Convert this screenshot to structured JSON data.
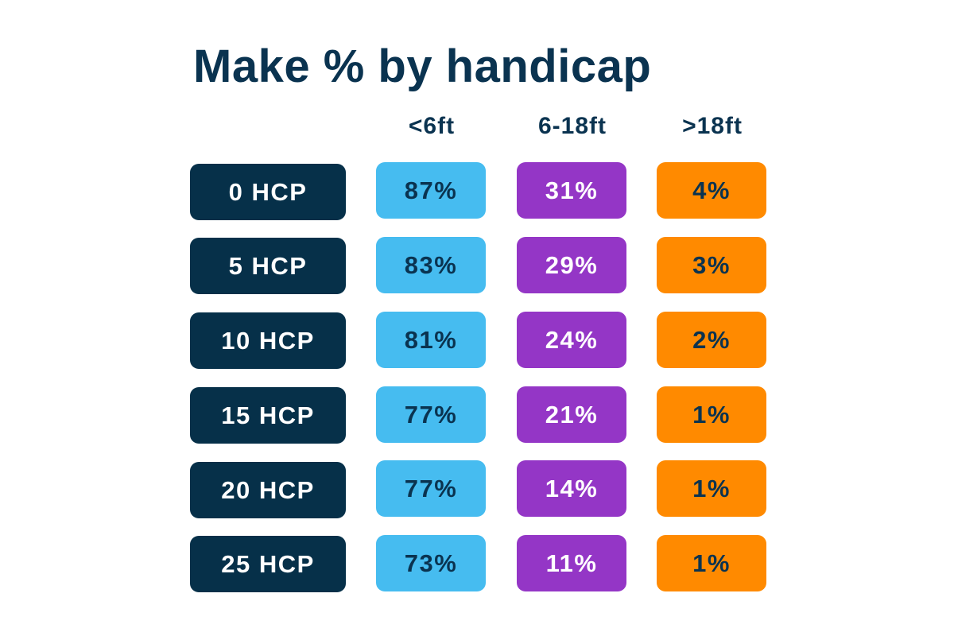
{
  "chart_data": {
    "type": "table",
    "title": "Make % by handicap",
    "columns": [
      "<6ft",
      "6-18ft",
      ">18ft"
    ],
    "rows": [
      {
        "label": "0 HCP",
        "values": [
          "87%",
          "31%",
          "4%"
        ]
      },
      {
        "label": "5 HCP",
        "values": [
          "83%",
          "29%",
          "3%"
        ]
      },
      {
        "label": "10 HCP",
        "values": [
          "81%",
          "24%",
          "2%"
        ]
      },
      {
        "label": "15 HCP",
        "values": [
          "77%",
          "21%",
          "1%"
        ]
      },
      {
        "label": "20 HCP",
        "values": [
          "77%",
          "14%",
          "1%"
        ]
      },
      {
        "label": "25 HCP",
        "values": [
          "73%",
          "11%",
          "1%"
        ]
      }
    ],
    "colors": {
      "title": "#0a3350",
      "row_label_bg": "#063049",
      "col_short_bg": "#46bcf0",
      "col_mid_bg": "#9436c6",
      "col_long_bg": "#ff8a00"
    }
  }
}
